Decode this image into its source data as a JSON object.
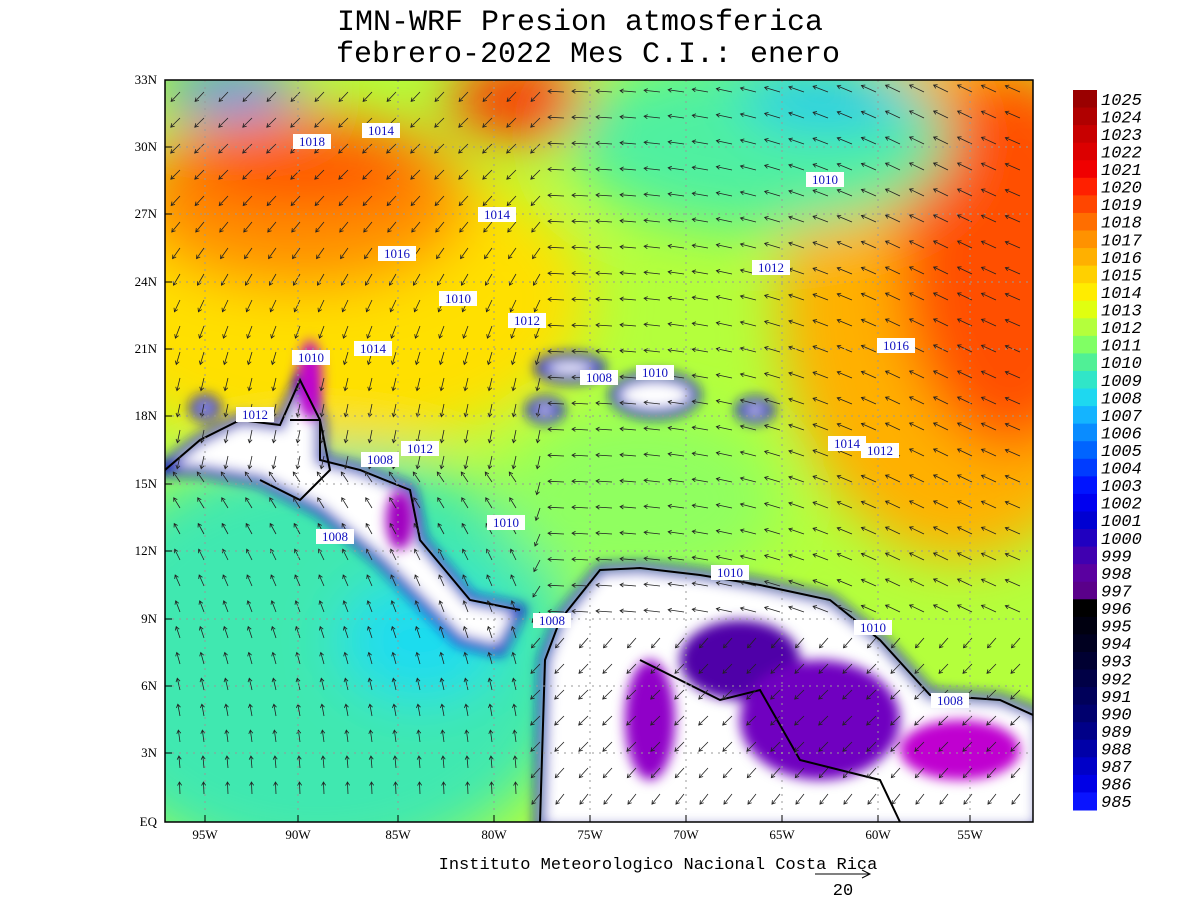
{
  "header": {
    "title_line1": "IMN-WRF  Presion atmosferica",
    "title_line2": "febrero-2022 Mes C.I.: enero"
  },
  "map": {
    "lat_labels": [
      "33N",
      "30N",
      "27N",
      "24N",
      "21N",
      "18N",
      "15N",
      "12N",
      "9N",
      "6N",
      "3N",
      "EQ"
    ],
    "lon_labels": [
      "95W",
      "90W",
      "85W",
      "80W",
      "75W",
      "70W",
      "65W",
      "60W",
      "55W"
    ],
    "contour_labels": [
      "1018",
      "1014",
      "1016",
      "1014",
      "1010",
      "1012",
      "1016",
      "1010",
      "1012",
      "1014",
      "1010",
      "1012",
      "1010",
      "1008",
      "1012",
      "1008",
      "1012",
      "1014",
      "1010",
      "1008",
      "1010",
      "1008",
      "1010",
      "1008"
    ]
  },
  "colorbar": {
    "labels": [
      "1025",
      "1024",
      "1023",
      "1022",
      "1021",
      "1020",
      "1019",
      "1018",
      "1017",
      "1016",
      "1015",
      "1014",
      "1013",
      "1012",
      "1011",
      "1010",
      "1009",
      "1008",
      "1007",
      "1006",
      "1005",
      "1004",
      "1003",
      "1002",
      "1001",
      "1000",
      "999",
      "998",
      "997",
      "996",
      "995",
      "994",
      "993",
      "992",
      "991",
      "990",
      "989",
      "988",
      "987",
      "986",
      "985"
    ],
    "colors": [
      "#9a0000",
      "#b00000",
      "#c80000",
      "#dc0000",
      "#f00000",
      "#ff2000",
      "#ff4600",
      "#ff6e00",
      "#ff9200",
      "#ffb000",
      "#ffd000",
      "#ffec00",
      "#e0ff10",
      "#b4ff3c",
      "#80ff64",
      "#50f096",
      "#30e6c8",
      "#1ed8f0",
      "#14b4ff",
      "#0a8cff",
      "#0064ff",
      "#003cff",
      "#0014ff",
      "#0000f0",
      "#0000d2",
      "#2000c0",
      "#4000b0",
      "#5a00a0",
      "#5a008a",
      "#000000",
      "#000010",
      "#000020",
      "#000032",
      "#000046",
      "#00005a",
      "#00006e",
      "#000088",
      "#0000a8",
      "#0000c8",
      "#0000e6",
      "#0a14ff"
    ]
  },
  "footer": {
    "credit": "Instituto Meteorologico Nacional Costa Rica",
    "vector_scale": "20"
  }
}
